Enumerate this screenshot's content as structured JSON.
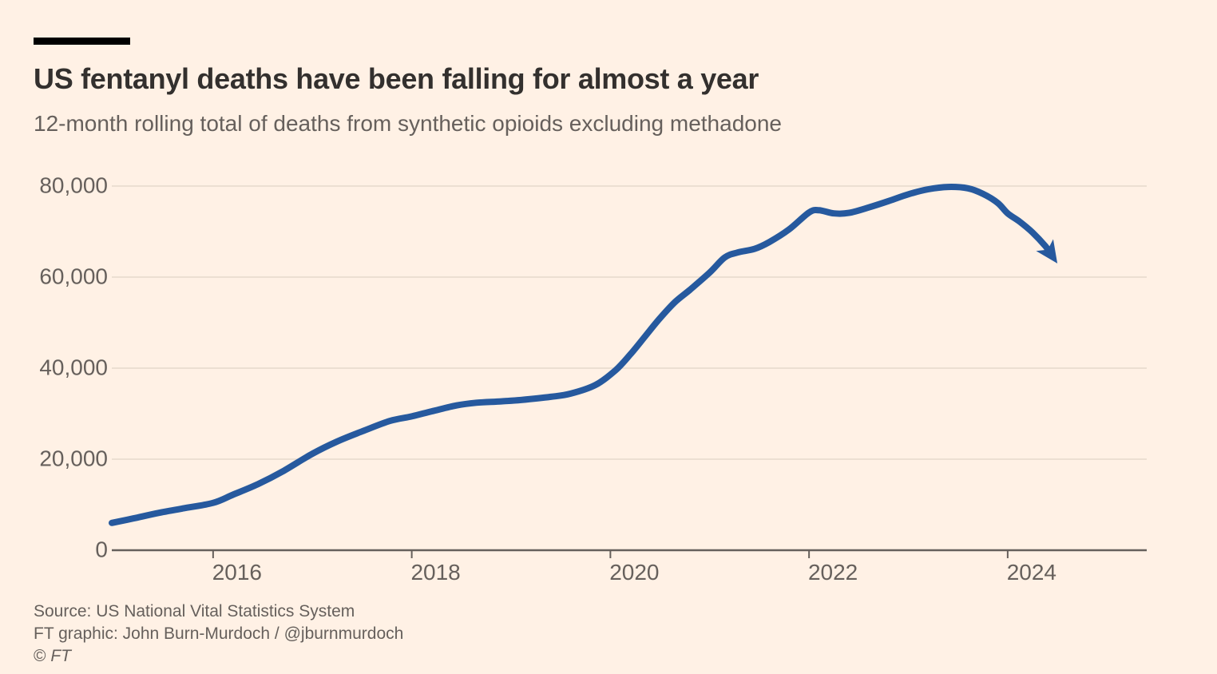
{
  "header": {
    "title": "US fentanyl deaths have been falling for almost a year",
    "subtitle": "12-month rolling total of deaths from synthetic opioids excluding methadone"
  },
  "footer": {
    "source": "Source: US National Vital Statistics System",
    "credit": "FT graphic: John Burn-Murdoch / @jburnmurdoch",
    "copyright_symbol": "©",
    "copyright_brand": "FT"
  },
  "colors": {
    "background": "#FFF1E5",
    "line": "#26599E",
    "grid": "#E6D9CC",
    "axis": "#66605C",
    "text_primary": "#33302E",
    "text_secondary": "#66605C",
    "topbar": "#000000"
  },
  "chart_data": {
    "type": "line",
    "title": "US fentanyl deaths have been falling for almost a year",
    "subtitle": "12-month rolling total of deaths from synthetic opioids excluding methadone",
    "xlabel": "",
    "ylabel": "",
    "xlim": [
      2014.98,
      2025.4
    ],
    "ylim": [
      0,
      80000
    ],
    "grid": "horizontal",
    "legend": "none",
    "annotation": "line ends in a down-right arrowhead at the latest value",
    "x_ticks": [
      2016,
      2018,
      2020,
      2022,
      2024
    ],
    "x_tick_labels": [
      "2016",
      "2018",
      "2020",
      "2022",
      "2024"
    ],
    "y_ticks": [
      0,
      20000,
      40000,
      60000,
      80000
    ],
    "y_tick_labels": [
      "0",
      "20,000",
      "40,000",
      "60,000",
      "80,000"
    ],
    "series": [
      {
        "name": "12-month rolling total of deaths from synthetic opioids excluding methadone",
        "x": [
          2014.98,
          2015.2,
          2015.45,
          2015.7,
          2016.0,
          2016.2,
          2016.45,
          2016.7,
          2017.0,
          2017.25,
          2017.5,
          2017.78,
          2018.0,
          2018.2,
          2018.45,
          2018.65,
          2018.9,
          2019.1,
          2019.4,
          2019.6,
          2019.85,
          2020.05,
          2020.2,
          2020.35,
          2020.5,
          2020.65,
          2020.8,
          2021.0,
          2021.15,
          2021.28,
          2021.45,
          2021.6,
          2021.8,
          2022.0,
          2022.1,
          2022.25,
          2022.4,
          2022.6,
          2022.8,
          2023.0,
          2023.2,
          2023.4,
          2023.6,
          2023.75,
          2023.9,
          2024.0,
          2024.12,
          2024.25,
          2024.38,
          2024.5
        ],
        "y": [
          6000,
          7000,
          8200,
          9200,
          10400,
          12200,
          14500,
          17300,
          21200,
          23900,
          26100,
          28400,
          29400,
          30500,
          31800,
          32400,
          32700,
          33000,
          33700,
          34400,
          36300,
          39500,
          43000,
          47000,
          51000,
          54500,
          57200,
          61000,
          64300,
          65400,
          66200,
          67700,
          70500,
          74200,
          74700,
          74000,
          74100,
          75300,
          76700,
          78200,
          79300,
          79800,
          79500,
          78300,
          76300,
          74000,
          72200,
          69800,
          66800,
          63000
        ]
      }
    ]
  }
}
